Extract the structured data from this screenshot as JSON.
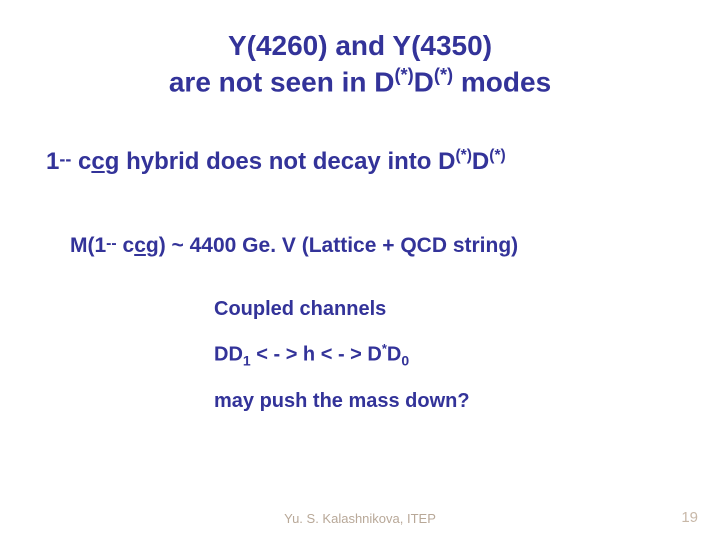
{
  "colors": {
    "text": "#333399",
    "footer": "#b8a898",
    "pagenum": "#c8b8a8",
    "background": "#ffffff"
  },
  "typography": {
    "family": "Comic Sans MS",
    "title_fontsize": 28,
    "line1_fontsize": 24,
    "line2_fontsize": 21,
    "block_fontsize": 20,
    "footer_fontsize": 13,
    "pagenum_fontsize": 15,
    "weight": "bold"
  },
  "title": {
    "line1_a": "Y(4260) and Y(4350)",
    "line2_a": "are not seen in D",
    "line2_sup1": "(*)",
    "line2_b": "D",
    "line2_sup2": "(*)",
    "line2_c": " modes"
  },
  "hybrid": {
    "jpc_base": "1",
    "jpc_sup": "--",
    "a": " c",
    "c_ul": "c",
    "b": "g hybrid does not decay into D",
    "sup1": "(*)",
    "c": "D",
    "sup2": "(*)"
  },
  "mass": {
    "a": "M(1",
    "sup_jpc": "--",
    "b": " c",
    "c_ul": "c",
    "c": "g) ~ 4400 Ge. V (Lattice + QCD string)"
  },
  "block": {
    "row1": "Coupled channels",
    "row2_a": "DD",
    "row2_sub1": "1",
    "row2_b": " < - > h < - > D",
    "row2_sup": "*",
    "row2_c": "D",
    "row2_sub2": "0",
    "row3": "may push the mass down?"
  },
  "footer": "Yu. S. Kalashnikova, ITEP",
  "page": "19"
}
